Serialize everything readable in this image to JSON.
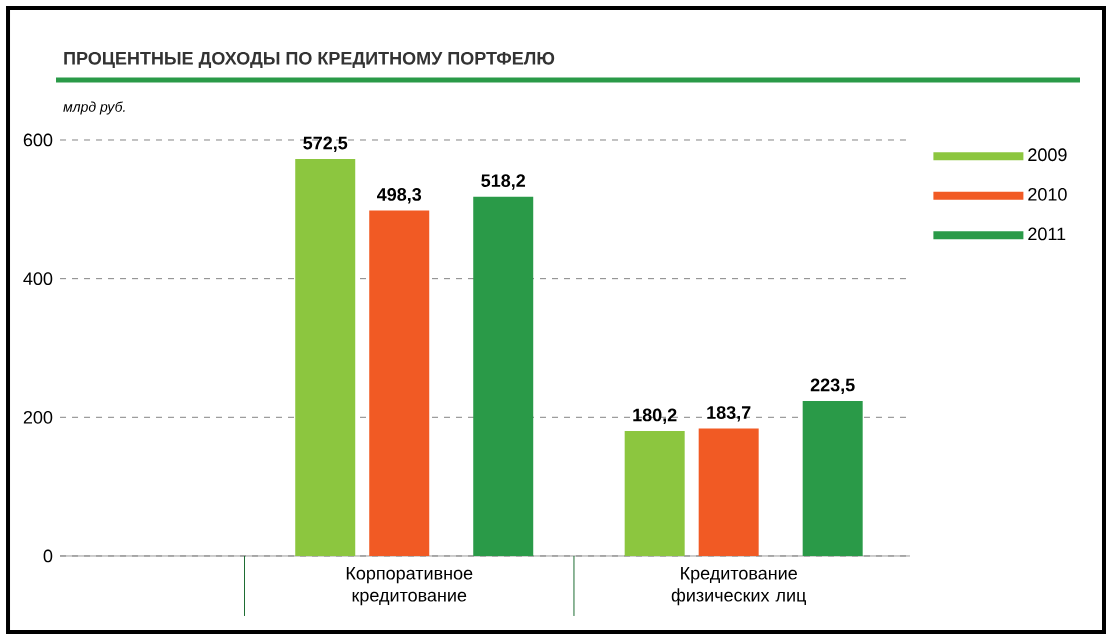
{
  "chart_data": {
    "type": "bar",
    "title": "ПРОЦЕНТНЫЕ ДОХОДЫ ПО КРЕДИТНОМУ ПОРТФЕЛЮ",
    "ylabel": "млрд руб.",
    "categories": [
      "Корпоративное кредитование",
      "Кредитование физических лиц"
    ],
    "series": [
      {
        "name": "2009",
        "color": "#8cc63f",
        "values": [
          572.5,
          180.2
        ],
        "value_labels": [
          "572,5",
          "180,2"
        ]
      },
      {
        "name": "2010",
        "color": "#f15a24",
        "values": [
          498.3,
          183.7
        ],
        "value_labels": [
          "498,3",
          "183,7"
        ]
      },
      {
        "name": "2011",
        "color": "#2a9a48",
        "values": [
          518.2,
          223.5
        ],
        "value_labels": [
          "518,2",
          "223,5"
        ]
      }
    ],
    "ylim": [
      0,
      600
    ],
    "yticks": [
      0,
      200,
      400,
      600
    ],
    "grid": "y",
    "legend": "top right"
  }
}
